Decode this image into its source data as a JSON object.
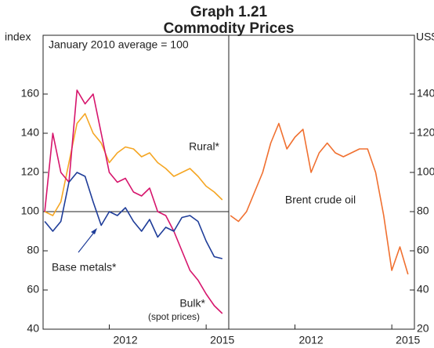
{
  "chart_data": {
    "type": "line",
    "title": "Graph 1.21",
    "subtitle": "Commodity Prices",
    "y_label": "index",
    "y2_label": "US$",
    "annotations": [
      "January 2010 average = 100",
      "(spot prices)"
    ],
    "reference_line": 100,
    "x": [
      2010.0,
      2010.25,
      2010.5,
      2010.75,
      2011.0,
      2011.25,
      2011.5,
      2011.75,
      2012.0,
      2012.25,
      2012.5,
      2012.75,
      2013.0,
      2013.25,
      2013.5,
      2013.75,
      2014.0,
      2014.25,
      2014.5,
      2014.75,
      2015.0,
      2015.25,
      2015.5
    ],
    "xlim": [
      2009.95,
      2015.7
    ],
    "xticks": [
      2012,
      2015
    ],
    "ylim": [
      40,
      190
    ],
    "yticks": [
      40,
      60,
      80,
      100,
      120,
      140,
      160
    ],
    "y2lim": [
      20,
      170
    ],
    "y2ticks": [
      20,
      40,
      60,
      80,
      100,
      120,
      140
    ],
    "series": [
      {
        "name": "Rural*",
        "color": "#f5a623",
        "values": [
          100,
          98,
          105,
          125,
          145,
          150,
          140,
          135,
          125,
          130,
          133,
          132,
          128,
          130,
          125,
          122,
          118,
          120,
          122,
          118,
          113,
          110,
          106
        ]
      },
      {
        "name": "Bulk*",
        "color": "#d6156c",
        "values": [
          100,
          140,
          120,
          115,
          162,
          155,
          160,
          140,
          120,
          115,
          117,
          110,
          108,
          112,
          100,
          98,
          90,
          80,
          70,
          65,
          58,
          52,
          48
        ]
      },
      {
        "name": "Base metals*",
        "color": "#1f3d99",
        "values": [
          95,
          90,
          95,
          115,
          120,
          118,
          105,
          93,
          100,
          98,
          102,
          95,
          90,
          96,
          87,
          92,
          90,
          97,
          98,
          95,
          85,
          77,
          76
        ]
      },
      {
        "name": "Brent crude oil",
        "color": "#f07030",
        "axis": "y2",
        "values": [
          78,
          75,
          80,
          90,
          100,
          115,
          125,
          112,
          118,
          122,
          100,
          110,
          115,
          110,
          108,
          110,
          112,
          112,
          100,
          78,
          50,
          62,
          48
        ]
      }
    ]
  }
}
